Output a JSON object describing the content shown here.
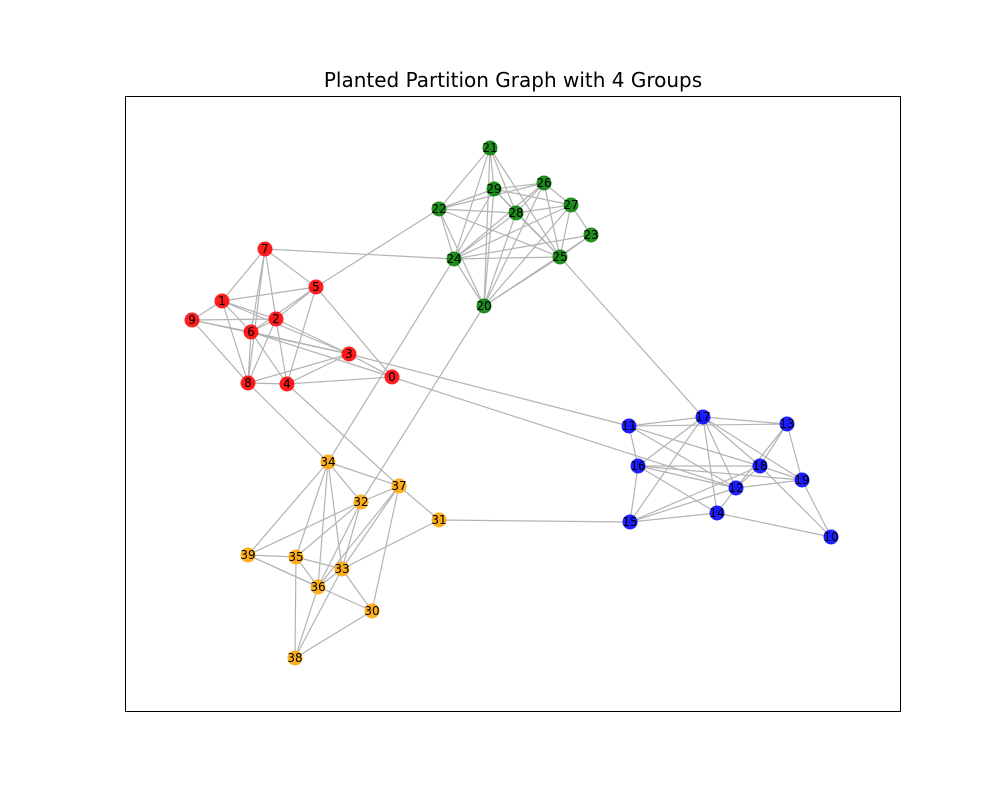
{
  "title": "Planted Partition Graph with 4 Groups",
  "groups": {
    "A": {
      "color": "#ff0000"
    },
    "B": {
      "color": "#0000ff"
    },
    "C": {
      "color": "#008000"
    },
    "D": {
      "color": "#ffa500"
    }
  },
  "nodes": [
    {
      "id": "0",
      "group": "A"
    },
    {
      "id": "1",
      "group": "A"
    },
    {
      "id": "2",
      "group": "A"
    },
    {
      "id": "3",
      "group": "A"
    },
    {
      "id": "4",
      "group": "A"
    },
    {
      "id": "5",
      "group": "A"
    },
    {
      "id": "6",
      "group": "A"
    },
    {
      "id": "7",
      "group": "A"
    },
    {
      "id": "8",
      "group": "A"
    },
    {
      "id": "9",
      "group": "A"
    },
    {
      "id": "10",
      "group": "B"
    },
    {
      "id": "11",
      "group": "B"
    },
    {
      "id": "12",
      "group": "B"
    },
    {
      "id": "13",
      "group": "B"
    },
    {
      "id": "14",
      "group": "B"
    },
    {
      "id": "15",
      "group": "B"
    },
    {
      "id": "16",
      "group": "B"
    },
    {
      "id": "17",
      "group": "B"
    },
    {
      "id": "18",
      "group": "B"
    },
    {
      "id": "19",
      "group": "B"
    },
    {
      "id": "20",
      "group": "C"
    },
    {
      "id": "21",
      "group": "C"
    },
    {
      "id": "22",
      "group": "C"
    },
    {
      "id": "23",
      "group": "C"
    },
    {
      "id": "24",
      "group": "C"
    },
    {
      "id": "25",
      "group": "C"
    },
    {
      "id": "26",
      "group": "C"
    },
    {
      "id": "27",
      "group": "C"
    },
    {
      "id": "28",
      "group": "C"
    },
    {
      "id": "29",
      "group": "C"
    },
    {
      "id": "30",
      "group": "D"
    },
    {
      "id": "31",
      "group": "D"
    },
    {
      "id": "32",
      "group": "D"
    },
    {
      "id": "33",
      "group": "D"
    },
    {
      "id": "34",
      "group": "D"
    },
    {
      "id": "35",
      "group": "D"
    },
    {
      "id": "36",
      "group": "D"
    },
    {
      "id": "37",
      "group": "D"
    },
    {
      "id": "38",
      "group": "D"
    },
    {
      "id": "39",
      "group": "D"
    }
  ],
  "edges": [
    [
      "7",
      "1"
    ],
    [
      "7",
      "5"
    ],
    [
      "7",
      "6"
    ],
    [
      "7",
      "2"
    ],
    [
      "7",
      "8"
    ],
    [
      "7",
      "24"
    ],
    [
      "1",
      "9"
    ],
    [
      "1",
      "5"
    ],
    [
      "1",
      "6"
    ],
    [
      "1",
      "2"
    ],
    [
      "1",
      "8"
    ],
    [
      "1",
      "3"
    ],
    [
      "9",
      "6"
    ],
    [
      "9",
      "8"
    ],
    [
      "9",
      "3"
    ],
    [
      "9",
      "2"
    ],
    [
      "5",
      "2"
    ],
    [
      "5",
      "6"
    ],
    [
      "5",
      "4"
    ],
    [
      "5",
      "0"
    ],
    [
      "5",
      "22"
    ],
    [
      "2",
      "6"
    ],
    [
      "2",
      "3"
    ],
    [
      "2",
      "8"
    ],
    [
      "2",
      "4"
    ],
    [
      "6",
      "3"
    ],
    [
      "6",
      "0"
    ],
    [
      "6",
      "8"
    ],
    [
      "6",
      "4"
    ],
    [
      "3",
      "0"
    ],
    [
      "3",
      "4"
    ],
    [
      "3",
      "8"
    ],
    [
      "3",
      "11"
    ],
    [
      "8",
      "4"
    ],
    [
      "8",
      "34"
    ],
    [
      "4",
      "0"
    ],
    [
      "4",
      "37"
    ],
    [
      "0",
      "12"
    ],
    [
      "21",
      "22"
    ],
    [
      "21",
      "29"
    ],
    [
      "21",
      "24"
    ],
    [
      "21",
      "28"
    ],
    [
      "21",
      "25"
    ],
    [
      "21",
      "20"
    ],
    [
      "29",
      "26"
    ],
    [
      "29",
      "27"
    ],
    [
      "29",
      "28"
    ],
    [
      "29",
      "24"
    ],
    [
      "29",
      "25"
    ],
    [
      "29",
      "20"
    ],
    [
      "29",
      "22"
    ],
    [
      "26",
      "27"
    ],
    [
      "26",
      "28"
    ],
    [
      "26",
      "24"
    ],
    [
      "26",
      "25"
    ],
    [
      "26",
      "20"
    ],
    [
      "26",
      "22"
    ],
    [
      "27",
      "23"
    ],
    [
      "27",
      "24"
    ],
    [
      "27",
      "20"
    ],
    [
      "27",
      "25"
    ],
    [
      "27",
      "28"
    ],
    [
      "28",
      "22"
    ],
    [
      "28",
      "24"
    ],
    [
      "28",
      "25"
    ],
    [
      "28",
      "20"
    ],
    [
      "22",
      "24"
    ],
    [
      "22",
      "25"
    ],
    [
      "22",
      "20"
    ],
    [
      "23",
      "25"
    ],
    [
      "23",
      "24"
    ],
    [
      "23",
      "20"
    ],
    [
      "24",
      "25"
    ],
    [
      "24",
      "20"
    ],
    [
      "24",
      "34"
    ],
    [
      "25",
      "20"
    ],
    [
      "25",
      "17"
    ],
    [
      "20",
      "32"
    ],
    [
      "11",
      "17"
    ],
    [
      "11",
      "16"
    ],
    [
      "11",
      "18"
    ],
    [
      "11",
      "12"
    ],
    [
      "11",
      "13"
    ],
    [
      "17",
      "13"
    ],
    [
      "17",
      "15"
    ],
    [
      "17",
      "12"
    ],
    [
      "17",
      "18"
    ],
    [
      "17",
      "14"
    ],
    [
      "17",
      "19"
    ],
    [
      "17",
      "16"
    ],
    [
      "13",
      "18"
    ],
    [
      "13",
      "19"
    ],
    [
      "13",
      "12"
    ],
    [
      "16",
      "12"
    ],
    [
      "16",
      "18"
    ],
    [
      "16",
      "14"
    ],
    [
      "16",
      "15"
    ],
    [
      "16",
      "19"
    ],
    [
      "18",
      "12"
    ],
    [
      "18",
      "19"
    ],
    [
      "18",
      "15"
    ],
    [
      "18",
      "10"
    ],
    [
      "12",
      "15"
    ],
    [
      "12",
      "14"
    ],
    [
      "12",
      "19"
    ],
    [
      "14",
      "15"
    ],
    [
      "14",
      "10"
    ],
    [
      "19",
      "10"
    ],
    [
      "31",
      "15"
    ],
    [
      "34",
      "37"
    ],
    [
      "34",
      "33"
    ],
    [
      "34",
      "35"
    ],
    [
      "34",
      "36"
    ],
    [
      "34",
      "39"
    ],
    [
      "34",
      "32"
    ],
    [
      "37",
      "32"
    ],
    [
      "37",
      "33"
    ],
    [
      "37",
      "31"
    ],
    [
      "37",
      "30"
    ],
    [
      "37",
      "36"
    ],
    [
      "32",
      "33"
    ],
    [
      "32",
      "35"
    ],
    [
      "32",
      "36"
    ],
    [
      "32",
      "39"
    ],
    [
      "31",
      "33"
    ],
    [
      "39",
      "36"
    ],
    [
      "39",
      "30"
    ],
    [
      "39",
      "35"
    ],
    [
      "35",
      "33"
    ],
    [
      "35",
      "36"
    ],
    [
      "35",
      "38"
    ],
    [
      "33",
      "38"
    ],
    [
      "33",
      "30"
    ],
    [
      "33",
      "36"
    ],
    [
      "36",
      "38"
    ],
    [
      "30",
      "38"
    ]
  ]
}
